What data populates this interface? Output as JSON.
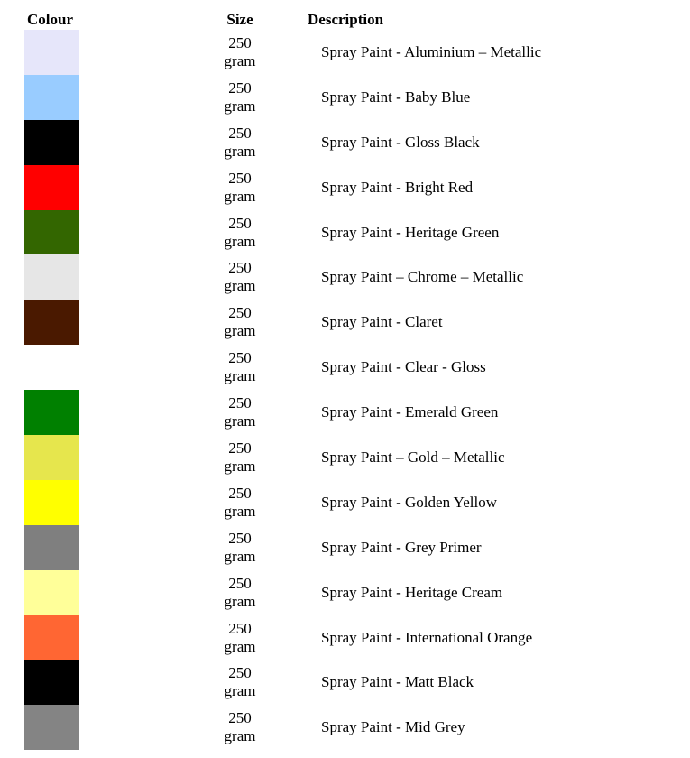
{
  "table": {
    "headers": {
      "colour": "Colour",
      "size": "Size",
      "description": "Description"
    },
    "rows": [
      {
        "colour_hex": "#E6E6FA",
        "size": "250 gram",
        "description": "Spray Paint - Aluminium – Metallic"
      },
      {
        "colour_hex": "#99CCFF",
        "size": "250 gram",
        "description": "Spray Paint - Baby Blue"
      },
      {
        "colour_hex": "#000000",
        "size": "250 gram",
        "description": "Spray Paint - Gloss Black"
      },
      {
        "colour_hex": "#FF0000",
        "size": "250 gram",
        "description": "Spray Paint - Bright Red"
      },
      {
        "colour_hex": "#336600",
        "size": "250 gram",
        "description": "Spray Paint - Heritage Green"
      },
      {
        "colour_hex": "#E6E6E6",
        "size": "250 gram",
        "description": "Spray Paint – Chrome – Metallic"
      },
      {
        "colour_hex": "#4A1900",
        "size": "250 gram",
        "description": "Spray Paint - Claret"
      },
      {
        "colour_hex": null,
        "size": "250 gram",
        "description": "Spray Paint - Clear - Gloss"
      },
      {
        "colour_hex": "#008000",
        "size": "250 gram",
        "description": "Spray Paint - Emerald Green"
      },
      {
        "colour_hex": "#E6E64D",
        "size": "250 gram",
        "description": "Spray Paint – Gold – Metallic"
      },
      {
        "colour_hex": "#FFFF00",
        "size": "250 gram",
        "description": "Spray Paint - Golden Yellow"
      },
      {
        "colour_hex": "#7F7F7F",
        "size": "250 gram",
        "description": "Spray Paint - Grey Primer"
      },
      {
        "colour_hex": "#FFFF99",
        "size": "250 gram",
        "description": "Spray Paint - Heritage Cream"
      },
      {
        "colour_hex": "#FF6633",
        "size": "250 gram",
        "description": "Spray Paint - International Orange"
      },
      {
        "colour_hex": "#000000",
        "size": "250 gram",
        "description": "Spray Paint - Matt Black"
      },
      {
        "colour_hex": "#848484",
        "size": "250 gram",
        "description": "Spray Paint - Mid Grey"
      }
    ]
  }
}
